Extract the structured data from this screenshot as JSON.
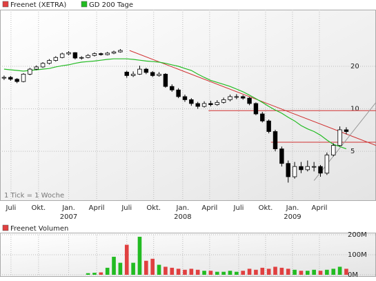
{
  "chart_data": {
    "type": "candlestick",
    "legend": [
      {
        "name": "Freenet (XETRA)",
        "color": "#e04040"
      },
      {
        "name": "GD 200 Tage",
        "color": "#22bb22"
      }
    ],
    "annotation": "1 Tick = 1 Woche",
    "log_scale": true,
    "grid": true,
    "x": [
      0,
      3,
      6,
      9,
      12,
      15,
      18,
      21,
      24,
      27,
      30,
      33,
      36,
      39,
      42,
      45,
      48,
      51,
      54,
      57,
      60,
      63,
      66,
      69,
      72,
      75,
      78,
      81,
      84,
      87,
      90,
      93,
      96,
      99,
      102,
      105,
      108,
      111,
      114,
      117,
      120,
      123,
      126,
      129,
      132,
      135,
      138,
      141,
      144,
      147,
      150,
      153,
      156,
      159
    ],
    "xlim": [
      -1.9,
      172.8
    ],
    "xticks": [
      {
        "value": 3.2,
        "label": "Juli"
      },
      {
        "value": 16,
        "label": "Okt."
      },
      {
        "value": 30,
        "label": "Jan."
      },
      {
        "value": 43,
        "label": "April"
      },
      {
        "value": 57,
        "label": "Juli"
      },
      {
        "value": 69.5,
        "label": "Okt."
      },
      {
        "value": 83,
        "label": "Jan."
      },
      {
        "value": 95.5,
        "label": "April"
      },
      {
        "value": 109,
        "label": "Juli"
      },
      {
        "value": 121.5,
        "label": "Okt."
      },
      {
        "value": 134,
        "label": "Jan."
      },
      {
        "value": 146.5,
        "label": "April"
      }
    ],
    "year_labels": [
      {
        "value": 30,
        "label": "2007"
      },
      {
        "value": 83,
        "label": "2008"
      },
      {
        "value": 134,
        "label": "2009"
      }
    ],
    "ylim": [
      2.25,
      50.4
    ],
    "yticks": [
      5,
      10,
      20
    ],
    "ohlc": [
      [
        16.5,
        17.2,
        16.0,
        16.7
      ],
      [
        16.7,
        17.1,
        15.8,
        16.2
      ],
      [
        16.2,
        16.5,
        15.2,
        15.6
      ],
      [
        15.6,
        17.9,
        15.4,
        17.6
      ],
      [
        17.6,
        19.5,
        17.3,
        19.1
      ],
      [
        19.1,
        20.3,
        18.8,
        19.8
      ],
      [
        19.8,
        21.4,
        19.5,
        21.0
      ],
      [
        21.0,
        22.5,
        20.6,
        22.0
      ],
      [
        22.0,
        23.6,
        21.6,
        23.1
      ],
      [
        23.1,
        25.0,
        22.8,
        24.5
      ],
      [
        24.5,
        25.6,
        24.0,
        25.0
      ],
      [
        25.0,
        25.2,
        22.4,
        22.9
      ],
      [
        22.9,
        23.6,
        22.3,
        23.1
      ],
      [
        23.1,
        24.4,
        22.8,
        23.9
      ],
      [
        23.9,
        25.1,
        23.5,
        24.6
      ],
      [
        24.6,
        25.0,
        23.8,
        24.2
      ],
      [
        24.2,
        25.3,
        23.9,
        24.8
      ],
      [
        24.8,
        25.8,
        24.4,
        25.3
      ],
      [
        25.3,
        26.5,
        25.0,
        25.9
      ],
      [
        18.2,
        18.6,
        16.6,
        17.2
      ],
      [
        17.2,
        18.4,
        16.8,
        17.6
      ],
      [
        17.6,
        20.2,
        17.4,
        19.1
      ],
      [
        19.1,
        19.5,
        17.6,
        18.1
      ],
      [
        18.1,
        18.5,
        16.8,
        17.2
      ],
      [
        17.2,
        18.2,
        16.9,
        17.6
      ],
      [
        17.6,
        17.9,
        14.1,
        14.4
      ],
      [
        14.4,
        14.9,
        13.2,
        13.6
      ],
      [
        13.6,
        14.0,
        11.9,
        12.2
      ],
      [
        12.2,
        12.6,
        11.2,
        11.6
      ],
      [
        11.6,
        11.9,
        10.5,
        10.9
      ],
      [
        10.9,
        11.2,
        10.0,
        10.4
      ],
      [
        10.4,
        11.3,
        10.2,
        10.9
      ],
      [
        10.9,
        11.4,
        10.4,
        10.7
      ],
      [
        10.7,
        11.5,
        10.5,
        11.1
      ],
      [
        11.1,
        12.0,
        10.9,
        11.6
      ],
      [
        11.6,
        12.6,
        11.3,
        12.2
      ],
      [
        12.2,
        12.7,
        11.7,
        12.2
      ],
      [
        12.2,
        12.5,
        11.6,
        11.9
      ],
      [
        11.9,
        12.1,
        10.6,
        10.9
      ],
      [
        10.9,
        11.1,
        9.0,
        9.2
      ],
      [
        9.2,
        9.5,
        8.0,
        8.2
      ],
      [
        8.2,
        8.4,
        6.7,
        6.9
      ],
      [
        6.9,
        7.1,
        5.0,
        5.2
      ],
      [
        5.2,
        5.4,
        3.9,
        4.1
      ],
      [
        4.1,
        4.3,
        3.0,
        3.3
      ],
      [
        3.3,
        4.2,
        3.2,
        3.9
      ],
      [
        3.9,
        4.2,
        3.5,
        3.7
      ],
      [
        3.7,
        4.3,
        3.6,
        3.9
      ],
      [
        3.9,
        4.2,
        3.6,
        3.9
      ],
      [
        3.9,
        4.0,
        3.3,
        3.5
      ],
      [
        3.5,
        4.9,
        3.4,
        4.7
      ],
      [
        4.7,
        5.7,
        4.6,
        5.5
      ],
      [
        5.5,
        7.5,
        5.4,
        7.1
      ],
      [
        7.1,
        7.4,
        6.6,
        6.9
      ]
    ],
    "ma": [
      19.1,
      18.9,
      18.7,
      18.5,
      18.7,
      18.9,
      19.1,
      19.3,
      19.8,
      20.2,
      20.5,
      21.0,
      21.4,
      21.6,
      21.8,
      22.1,
      22.4,
      22.6,
      22.6,
      22.6,
      22.4,
      22.1,
      21.8,
      21.6,
      21.4,
      21.0,
      20.5,
      20.0,
      19.3,
      18.7,
      17.6,
      16.7,
      15.9,
      15.4,
      14.9,
      14.4,
      13.8,
      13.2,
      12.5,
      11.8,
      11.1,
      10.4,
      9.8,
      9.3,
      8.7,
      8.2,
      7.6,
      7.2,
      6.9,
      6.5,
      6.0,
      5.6,
      5.4,
      5.2
    ],
    "trendlines": [
      {
        "color": "#d03030",
        "x": [
          58.3,
          172.8
        ],
        "y": [
          25.9,
          5.5
        ]
      },
      {
        "color": "#d03030",
        "x": [
          95,
          172.8
        ],
        "y": [
          9.7,
          9.7
        ]
      },
      {
        "color": "#d03030",
        "x": [
          124,
          172.8
        ],
        "y": [
          5.8,
          5.8
        ]
      },
      {
        "color": "#999999",
        "x": [
          144,
          172.8
        ],
        "y": [
          3.1,
          11.1
        ]
      }
    ],
    "volume": {
      "name": "Freenet Volumen",
      "color": "#e04040",
      "up_color": "#22bb22",
      "down_color": "#e04040",
      "values": [
        null,
        null,
        null,
        null,
        null,
        null,
        null,
        null,
        null,
        null,
        null,
        null,
        null,
        8,
        10,
        12,
        35,
        90,
        60,
        150,
        60,
        190,
        70,
        80,
        50,
        40,
        35,
        30,
        25,
        30,
        25,
        20,
        20,
        15,
        15,
        20,
        15,
        20,
        30,
        25,
        35,
        30,
        40,
        35,
        30,
        25,
        20,
        20,
        25,
        20,
        25,
        30,
        40,
        30
      ],
      "ylim": [
        0,
        200
      ],
      "yticks": [
        {
          "value": 0,
          "label": "0M"
        },
        {
          "value": 100,
          "label": "100M"
        },
        {
          "value": 200,
          "label": "200M"
        }
      ]
    }
  }
}
